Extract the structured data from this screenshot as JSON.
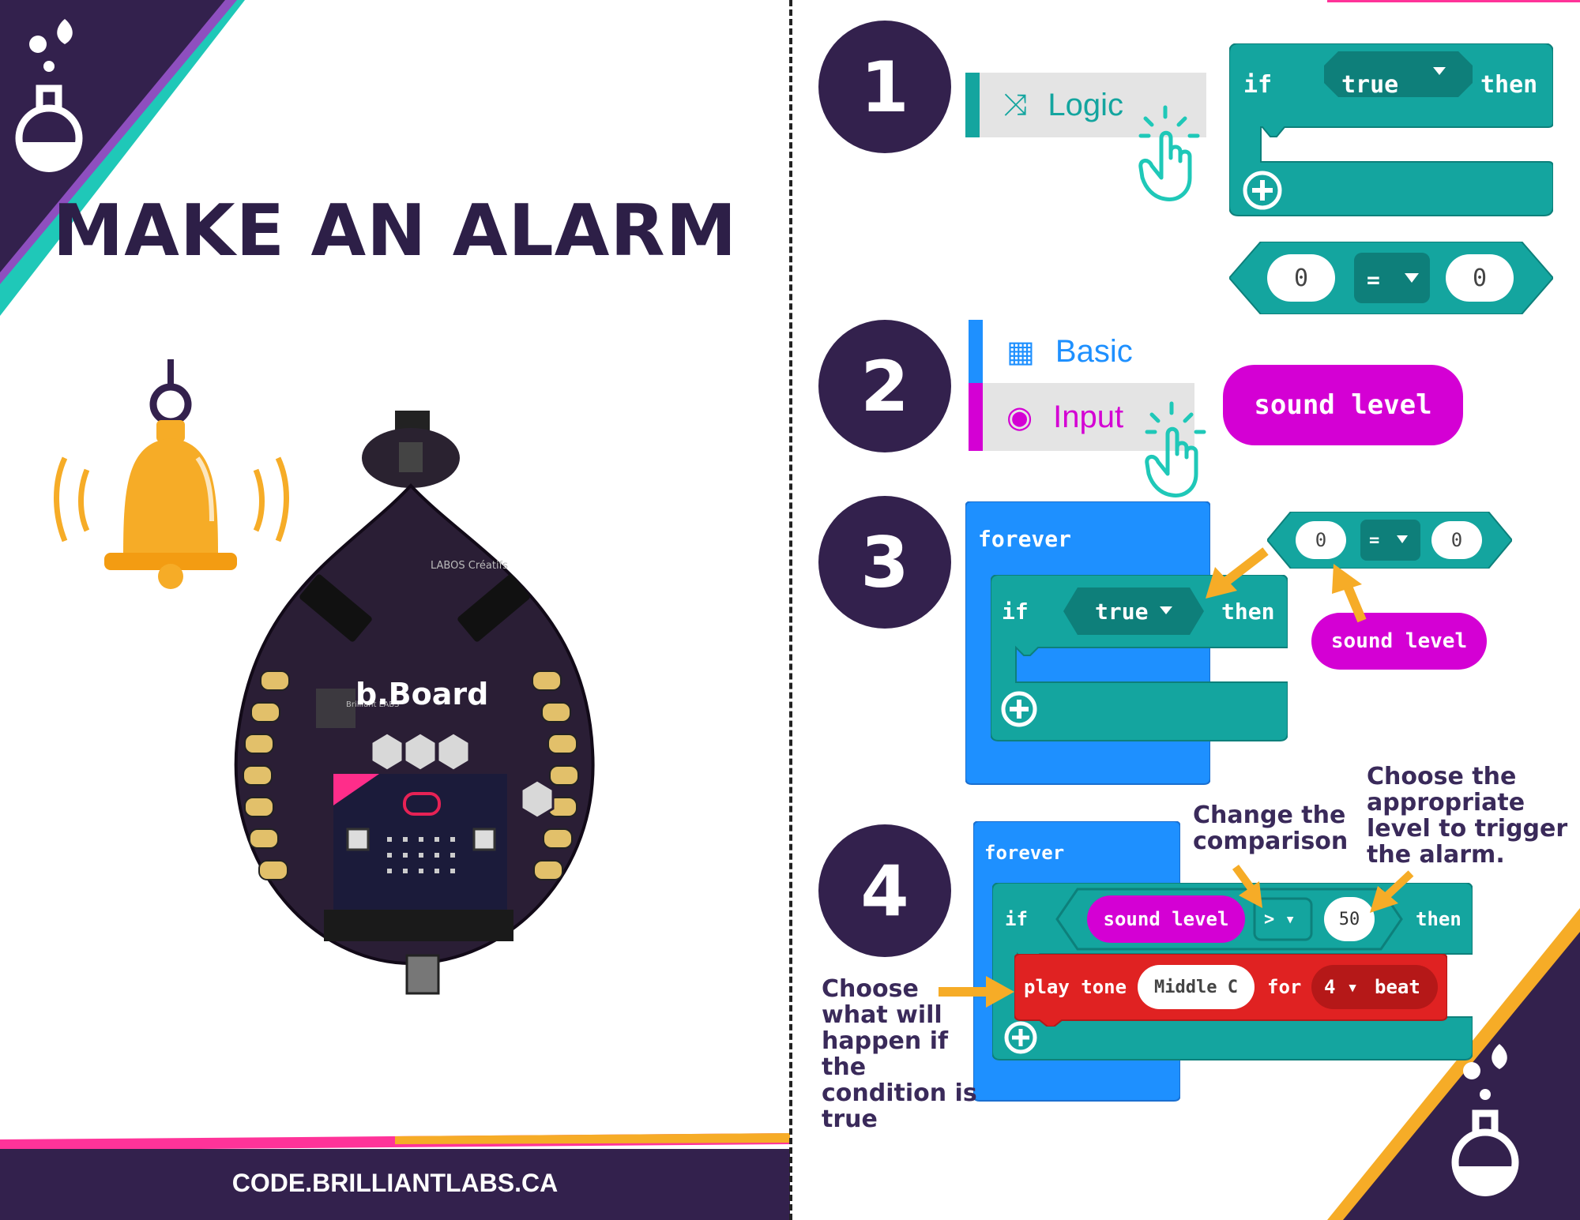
{
  "title": "MAKE AN ALARM",
  "footer": "CODE.BRILLIANTLABS.CA",
  "board_label": "b.Board",
  "board_brand": "Brilliant LABS",
  "board_brand2": "LABOS Créatifs",
  "steps": [
    {
      "number": "1"
    },
    {
      "number": "2"
    },
    {
      "number": "3"
    },
    {
      "number": "4"
    }
  ],
  "step1": {
    "category": "Logic",
    "if_kw": "if",
    "true_kw": "true",
    "then_kw": "then",
    "compare_left": "0",
    "compare_op": "=",
    "compare_right": "0"
  },
  "step2": {
    "category_basic": "Basic",
    "category_input": "Input",
    "sound_block": "sound level"
  },
  "step3": {
    "forever_kw": "forever",
    "if_kw": "if",
    "true_kw": "true",
    "then_kw": "then",
    "compare_left": "0",
    "compare_op": "=",
    "compare_right": "0",
    "sound_block": "sound level"
  },
  "step4": {
    "forever_kw": "forever",
    "if_kw": "if",
    "sound_block": "sound level",
    "compare_op": ">",
    "value": "50",
    "then_kw": "then",
    "play_kw": "play tone",
    "note": "Middle C",
    "for_kw": "for",
    "beats": "4",
    "beat_kw": "beat",
    "note_change": [
      "Change the",
      "comparison"
    ],
    "note_level": [
      "Choose the",
      "appropriate",
      "level to trigger",
      "the alarm."
    ],
    "note_choose": [
      "Choose",
      "what will",
      "happen if",
      "the",
      "condition is",
      "true"
    ]
  },
  "colors": {
    "purple": "#33214d",
    "teal": "#14a59f",
    "magenta": "#d400d4",
    "blue": "#1e90ff",
    "red": "#e02222",
    "orange": "#f6ac27",
    "pink": "#ff3399"
  }
}
